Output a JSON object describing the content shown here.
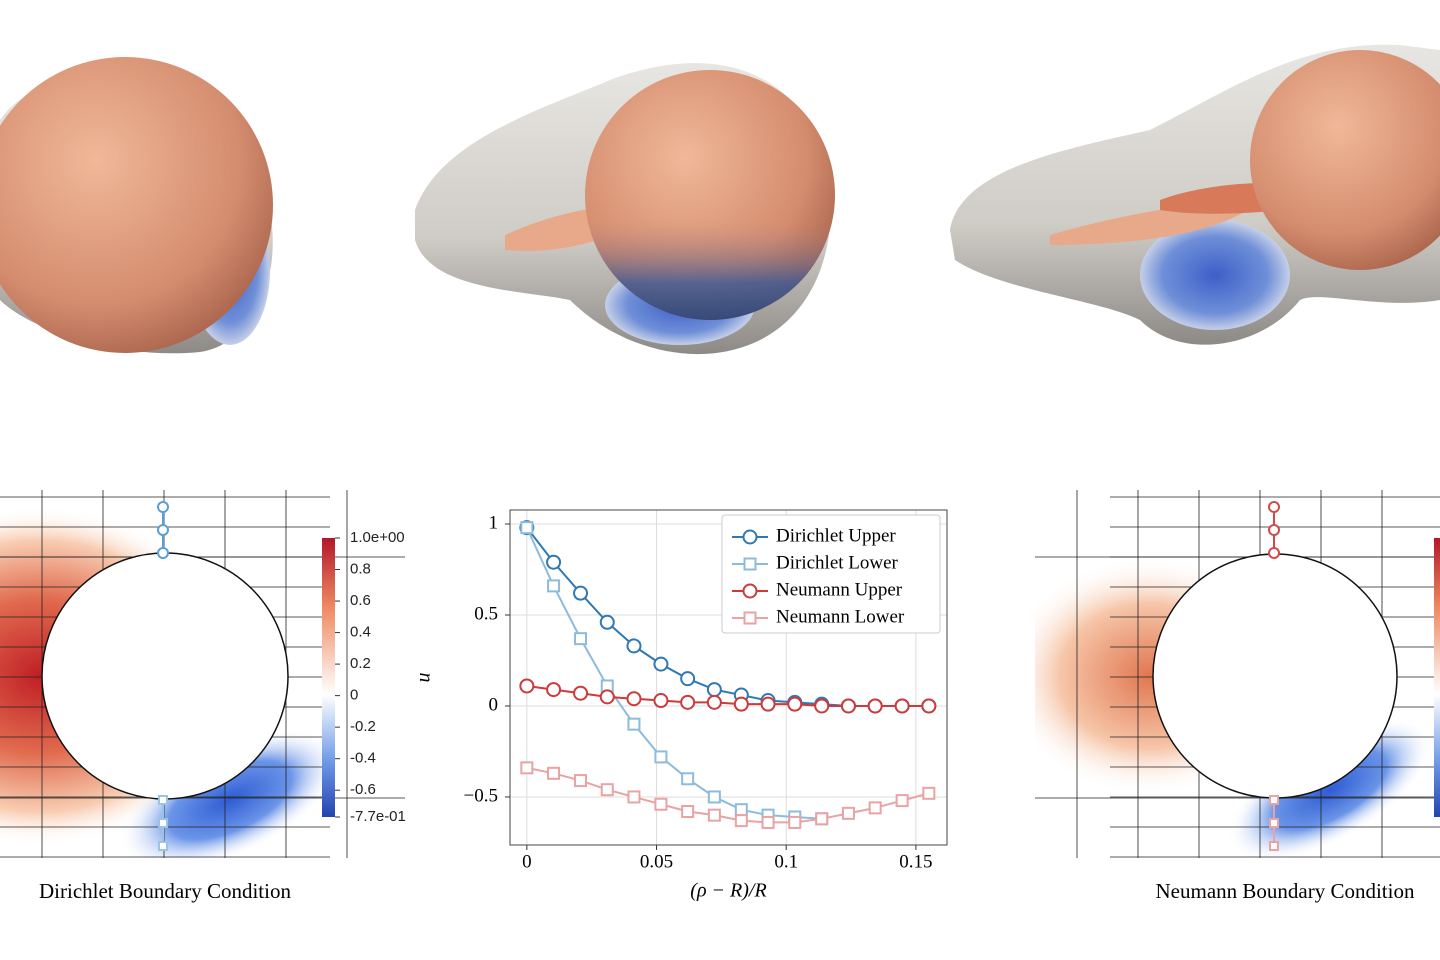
{
  "chart_data": [
    {
      "type": "field",
      "title": "Dirichlet Boundary Condition",
      "clim": [
        -0.77,
        1.0
      ],
      "cticks": [
        {
          "value": 1.0,
          "label": "1.0e+00"
        },
        0.8,
        0.6,
        0.4,
        0.2,
        0,
        -0.2,
        -0.4,
        -0.6,
        {
          "value": -0.77,
          "label": "-7.7e-01"
        }
      ]
    },
    {
      "type": "line",
      "xlabel": "(ρ − R)/R",
      "ylabel": "u",
      "x": [
        0,
        0.0103,
        0.0207,
        0.031,
        0.0413,
        0.0517,
        0.062,
        0.0723,
        0.0827,
        0.093,
        0.1033,
        0.1137,
        0.124,
        0.1343,
        0.1447,
        0.155
      ],
      "series": [
        {
          "name": "Dirichlet Upper",
          "color": "#2f78b4",
          "marker": "circle",
          "values": [
            0.98,
            0.79,
            0.62,
            0.46,
            0.33,
            0.23,
            0.15,
            0.09,
            0.06,
            0.03,
            0.02,
            0.01,
            0.0,
            0.0,
            0.0,
            0.0
          ]
        },
        {
          "name": "Dirichlet Lower",
          "color": "#8dbbdc",
          "marker": "square",
          "values": [
            0.98,
            0.66,
            0.37,
            0.11,
            -0.1,
            -0.28,
            -0.4,
            -0.5,
            -0.57,
            -0.6,
            -0.61,
            -0.62,
            null,
            null,
            null,
            null
          ]
        },
        {
          "name": "Neumann Upper",
          "color": "#cc3a3a",
          "marker": "circle",
          "values": [
            0.11,
            0.09,
            0.07,
            0.05,
            0.04,
            0.03,
            0.02,
            0.02,
            0.01,
            0.01,
            0.01,
            0.0,
            0.0,
            0.0,
            0.0,
            0.0
          ]
        },
        {
          "name": "Neumann Lower",
          "color": "#e8a3a3",
          "marker": "square",
          "values": [
            -0.34,
            -0.37,
            -0.41,
            -0.46,
            -0.5,
            -0.54,
            -0.58,
            -0.6,
            -0.63,
            -0.64,
            -0.64,
            -0.62,
            -0.59,
            -0.56,
            -0.52,
            -0.48
          ]
        }
      ],
      "xlim": [
        -0.0065,
        0.162
      ],
      "ylim": [
        -0.764,
        1.077
      ],
      "xticks": [
        0,
        0.05,
        0.1,
        0.15
      ],
      "yticks": [
        {
          "value": -0.5,
          "label": "−0.5"
        },
        0,
        0.5,
        1
      ],
      "grid": true,
      "legend": "upper right"
    },
    {
      "type": "field",
      "title": "Neumann Boundary Condition"
    }
  ]
}
